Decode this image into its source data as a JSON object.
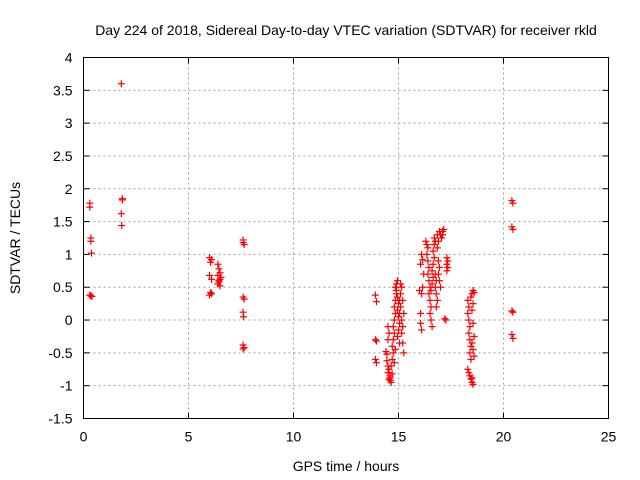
{
  "chart_data": {
    "type": "scatter",
    "title": "Day 224 of 2018, Sidereal Day-to-day VTEC variation (SDTVAR) for receiver rkld",
    "xlabel": "GPS time / hours",
    "ylabel": "SDTVAR / TECUs",
    "xlim": [
      0,
      25
    ],
    "ylim": [
      -1.5,
      4
    ],
    "xticks": [
      0,
      5,
      10,
      15,
      20,
      25
    ],
    "yticks": [
      -1.5,
      -1,
      -0.5,
      0,
      0.5,
      1,
      1.5,
      2,
      2.5,
      3,
      3.5,
      4
    ],
    "xtick_labels": [
      "0",
      "5",
      "10",
      "15",
      "20",
      "25"
    ],
    "ytick_labels": [
      "-1.5",
      "-1",
      "-0.5",
      "0",
      "0.5",
      "1",
      "1.5",
      "2",
      "2.5",
      "3",
      "3.5",
      "4"
    ],
    "grid": true,
    "marker": "+",
    "color": "#ff0000",
    "series": [
      {
        "name": "SDTVAR",
        "points": [
          [
            0.3,
            1.78
          ],
          [
            0.3,
            1.72
          ],
          [
            0.35,
            1.25
          ],
          [
            0.35,
            1.2
          ],
          [
            0.38,
            1.02
          ],
          [
            0.3,
            0.38
          ],
          [
            0.4,
            0.36
          ],
          [
            0.35,
            0.37
          ],
          [
            1.8,
            3.6
          ],
          [
            1.85,
            1.85
          ],
          [
            1.85,
            1.83
          ],
          [
            1.8,
            1.62
          ],
          [
            1.82,
            1.44
          ],
          [
            6.0,
            0.95
          ],
          [
            6.1,
            0.92
          ],
          [
            6.05,
            0.88
          ],
          [
            6.0,
            0.68
          ],
          [
            6.1,
            0.62
          ],
          [
            6.05,
            0.42
          ],
          [
            6.0,
            0.38
          ],
          [
            6.1,
            0.4
          ],
          [
            6.4,
            0.85
          ],
          [
            6.45,
            0.78
          ],
          [
            6.5,
            0.72
          ],
          [
            6.4,
            0.68
          ],
          [
            6.5,
            0.62
          ],
          [
            6.45,
            0.58
          ],
          [
            6.4,
            0.55
          ],
          [
            6.5,
            0.52
          ],
          [
            6.45,
            0.6
          ],
          [
            6.55,
            0.65
          ],
          [
            7.6,
            1.22
          ],
          [
            7.6,
            1.18
          ],
          [
            7.65,
            1.15
          ],
          [
            7.6,
            0.35
          ],
          [
            7.65,
            0.32
          ],
          [
            7.6,
            0.12
          ],
          [
            7.62,
            0.05
          ],
          [
            7.6,
            -0.38
          ],
          [
            7.65,
            -0.42
          ],
          [
            7.6,
            -0.44
          ],
          [
            13.9,
            0.38
          ],
          [
            13.95,
            0.28
          ],
          [
            13.9,
            -0.3
          ],
          [
            13.95,
            -0.32
          ],
          [
            13.9,
            -0.6
          ],
          [
            13.95,
            -0.65
          ],
          [
            14.4,
            -0.48
          ],
          [
            14.45,
            -0.52
          ],
          [
            14.5,
            -0.3
          ],
          [
            14.5,
            -0.1
          ],
          [
            14.55,
            -0.2
          ],
          [
            14.45,
            -0.62
          ],
          [
            14.5,
            -0.7
          ],
          [
            14.55,
            -0.75
          ],
          [
            14.5,
            -0.8
          ],
          [
            14.6,
            -0.85
          ],
          [
            14.55,
            -0.9
          ],
          [
            14.6,
            -0.92
          ],
          [
            14.65,
            -0.95
          ],
          [
            14.6,
            -0.88
          ],
          [
            14.7,
            -0.82
          ],
          [
            14.65,
            -0.7
          ],
          [
            14.7,
            -0.6
          ],
          [
            14.75,
            -0.5
          ],
          [
            14.7,
            -0.4
          ],
          [
            14.75,
            -0.3
          ],
          [
            14.8,
            -0.2
          ],
          [
            14.75,
            -0.1
          ],
          [
            14.8,
            0.0
          ],
          [
            14.85,
            0.1
          ],
          [
            14.8,
            0.2
          ],
          [
            14.85,
            0.3
          ],
          [
            14.9,
            0.4
          ],
          [
            14.85,
            0.5
          ],
          [
            14.9,
            0.55
          ],
          [
            14.95,
            0.6
          ],
          [
            14.9,
            0.45
          ],
          [
            14.95,
            0.35
          ],
          [
            15.0,
            0.25
          ],
          [
            14.95,
            0.15
          ],
          [
            15.0,
            0.05
          ],
          [
            15.05,
            -0.05
          ],
          [
            15.0,
            -0.15
          ],
          [
            15.05,
            0.1
          ],
          [
            15.1,
            0.2
          ],
          [
            15.05,
            0.3
          ],
          [
            15.1,
            0.4
          ],
          [
            15.15,
            0.5
          ],
          [
            15.1,
            0.55
          ],
          [
            15.15,
            0.0
          ],
          [
            15.2,
            -0.1
          ],
          [
            15.15,
            -0.2
          ],
          [
            15.2,
            -0.35
          ],
          [
            15.25,
            -0.5
          ],
          [
            15.2,
            0.3
          ],
          [
            15.25,
            0.1
          ],
          [
            14.8,
            -0.65
          ],
          [
            14.85,
            -0.45
          ],
          [
            14.95,
            -0.25
          ],
          [
            15.05,
            -0.35
          ],
          [
            16.0,
            0.45
          ],
          [
            16.05,
            0.1
          ],
          [
            16.1,
            -0.15
          ],
          [
            16.05,
            -0.05
          ],
          [
            16.1,
            0.4
          ],
          [
            16.15,
            0.5
          ],
          [
            16.05,
            0.85
          ],
          [
            16.1,
            1.0
          ],
          [
            16.15,
            0.92
          ],
          [
            16.2,
            0.7
          ],
          [
            16.3,
            1.2
          ],
          [
            16.35,
            1.15
          ],
          [
            16.4,
            1.1
          ],
          [
            16.35,
            1.0
          ],
          [
            16.4,
            0.9
          ],
          [
            16.45,
            0.8
          ],
          [
            16.4,
            0.7
          ],
          [
            16.45,
            0.6
          ],
          [
            16.5,
            0.5
          ],
          [
            16.45,
            0.4
          ],
          [
            16.5,
            0.3
          ],
          [
            16.55,
            0.2
          ],
          [
            16.5,
            0.1
          ],
          [
            16.55,
            0.0
          ],
          [
            16.6,
            -0.1
          ],
          [
            16.55,
            0.45
          ],
          [
            16.6,
            0.55
          ],
          [
            16.65,
            0.65
          ],
          [
            16.6,
            0.75
          ],
          [
            16.65,
            0.85
          ],
          [
            16.7,
            0.95
          ],
          [
            16.65,
            1.05
          ],
          [
            16.7,
            1.15
          ],
          [
            16.75,
            1.2
          ],
          [
            16.7,
            1.25
          ],
          [
            16.75,
            0.5
          ],
          [
            16.8,
            0.6
          ],
          [
            16.75,
            0.7
          ],
          [
            16.8,
            0.4
          ],
          [
            16.85,
            0.3
          ],
          [
            16.8,
            0.2
          ],
          [
            16.85,
            1.1
          ],
          [
            16.9,
            1.2
          ],
          [
            16.85,
            1.3
          ],
          [
            16.9,
            0.9
          ],
          [
            16.95,
            0.8
          ],
          [
            16.9,
            0.7
          ],
          [
            16.95,
            0.6
          ],
          [
            17.0,
            0.5
          ],
          [
            16.95,
            1.35
          ],
          [
            17.0,
            1.3
          ],
          [
            17.05,
            1.25
          ],
          [
            17.1,
            1.35
          ],
          [
            17.15,
            1.38
          ],
          [
            17.1,
            1.3
          ],
          [
            17.2,
            0.02
          ],
          [
            17.25,
            0.0
          ],
          [
            17.3,
            0.95
          ],
          [
            17.35,
            0.9
          ],
          [
            17.3,
            0.85
          ],
          [
            17.35,
            0.8
          ],
          [
            17.3,
            0.75
          ],
          [
            18.3,
            0.3
          ],
          [
            18.35,
            0.2
          ],
          [
            18.3,
            0.1
          ],
          [
            18.35,
            0.0
          ],
          [
            18.4,
            -0.1
          ],
          [
            18.35,
            -0.2
          ],
          [
            18.4,
            -0.3
          ],
          [
            18.45,
            -0.4
          ],
          [
            18.4,
            -0.5
          ],
          [
            18.45,
            -0.6
          ],
          [
            18.3,
            -0.75
          ],
          [
            18.35,
            -0.8
          ],
          [
            18.4,
            -0.85
          ],
          [
            18.45,
            -0.9
          ],
          [
            18.5,
            -0.95
          ],
          [
            18.55,
            -0.98
          ],
          [
            18.5,
            -0.88
          ],
          [
            18.45,
            0.35
          ],
          [
            18.5,
            0.4
          ],
          [
            18.55,
            0.45
          ],
          [
            18.6,
            0.42
          ],
          [
            18.55,
            0.25
          ],
          [
            18.5,
            0.15
          ],
          [
            18.55,
            -0.05
          ],
          [
            18.6,
            -0.25
          ],
          [
            18.55,
            -0.45
          ],
          [
            18.5,
            -0.35
          ],
          [
            18.6,
            -0.55
          ],
          [
            20.4,
            1.82
          ],
          [
            20.45,
            1.78
          ],
          [
            20.4,
            1.42
          ],
          [
            20.45,
            1.38
          ],
          [
            20.4,
            0.14
          ],
          [
            20.45,
            0.12
          ],
          [
            20.4,
            -0.22
          ],
          [
            20.45,
            -0.28
          ]
        ]
      }
    ]
  }
}
